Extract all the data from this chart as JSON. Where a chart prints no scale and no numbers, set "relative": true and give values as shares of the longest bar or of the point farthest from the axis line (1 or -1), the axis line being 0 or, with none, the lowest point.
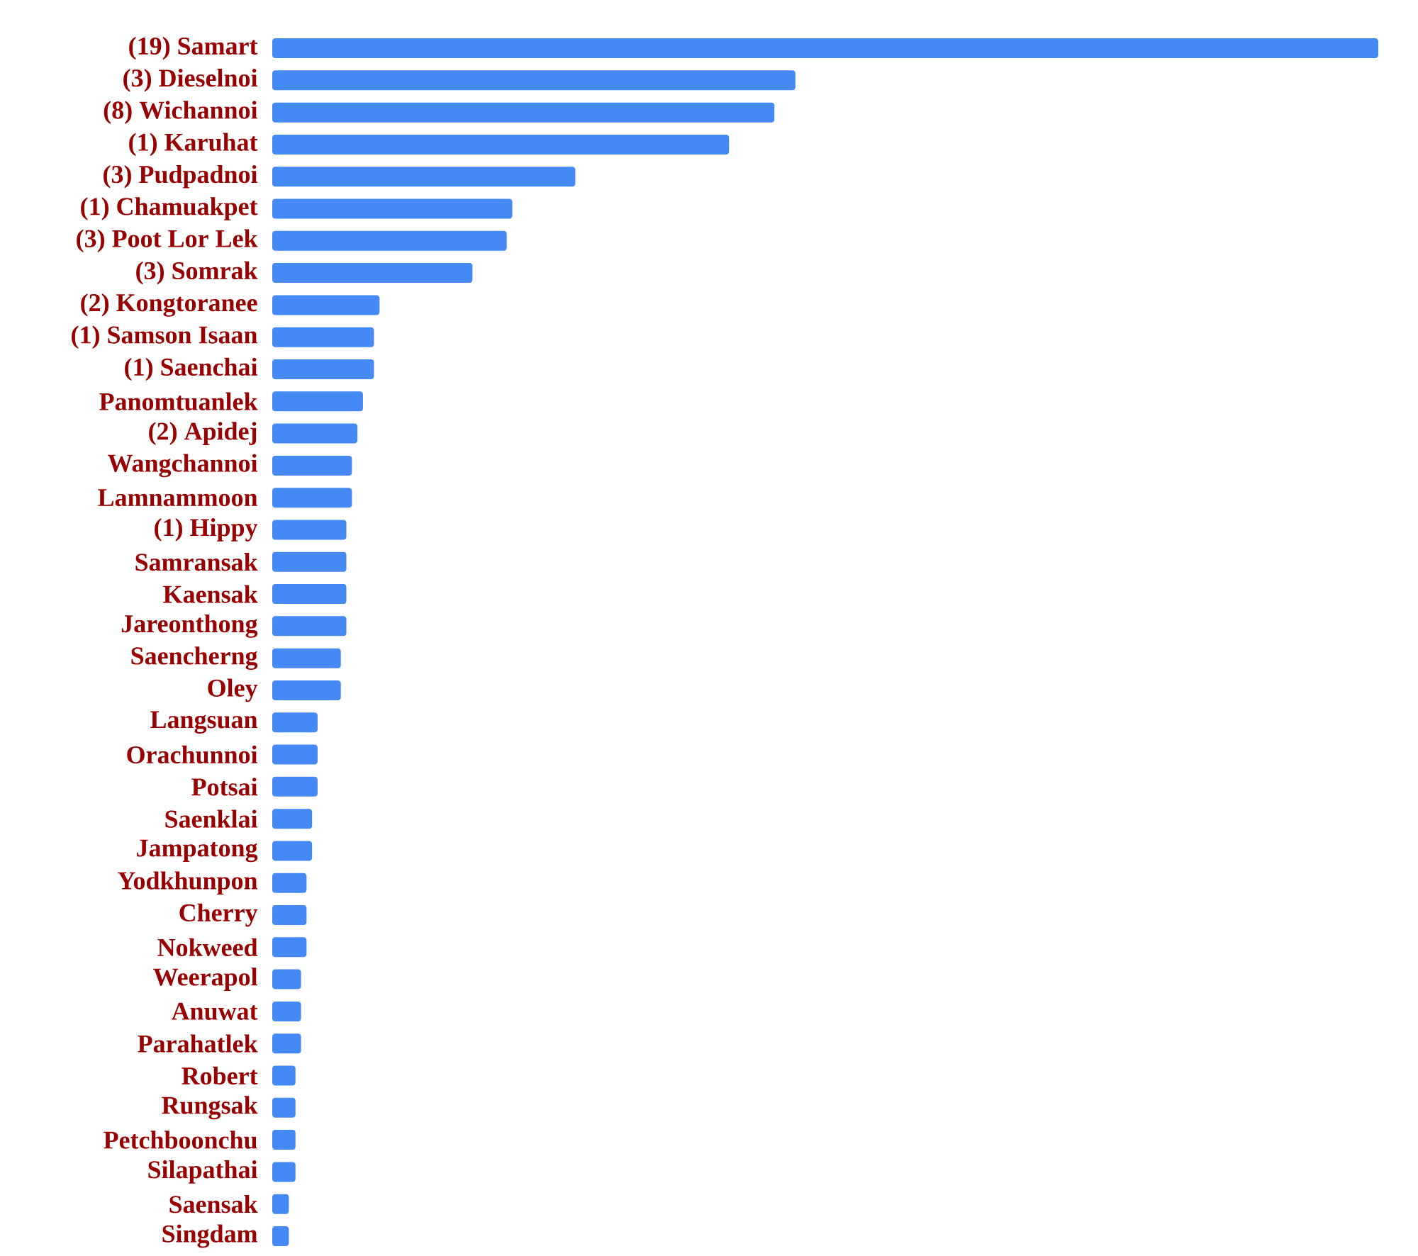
{
  "chart_data": {
    "type": "bar",
    "orientation": "horizontal",
    "relative": true,
    "color": "#4589f5",
    "categories": [
      "(19) Samart",
      "(3) Dieselnoi",
      "(8) Wichannoi",
      "(1) Karuhat",
      "(3) Pudpadnoi",
      "(1) Chamuakpet",
      "(3) Poot Lor Lek",
      "(3) Somrak",
      "(2) Kongtoranee",
      "(1) Samson Isaan",
      "(1) Saenchai",
      "Panomtuanlek",
      "(2) Apidej",
      "Wangchannoi",
      "Lamnammoon",
      "(1) Hippy",
      "Samransak",
      "Kaensak",
      "Jareonthong",
      "Saencherng",
      "Oley",
      "Langsuan",
      "Orachunnoi",
      "Potsai",
      "Saenklai",
      "Jampatong",
      "Yodkhunpon",
      "Cherry",
      "Nokweed",
      "Weerapol",
      "Anuwat",
      "Parahatlek",
      "Robert",
      "Rungsak",
      "Petchboonchu",
      "Silapathai",
      "Saensak",
      "Singdam"
    ],
    "values": [
      1,
      0.473,
      0.454,
      0.413,
      0.274,
      0.217,
      0.212,
      0.181,
      0.097,
      0.092,
      0.092,
      0.082,
      0.077,
      0.072,
      0.072,
      0.067,
      0.067,
      0.067,
      0.067,
      0.062,
      0.062,
      0.041,
      0.041,
      0.041,
      0.036,
      0.036,
      0.031,
      0.031,
      0.031,
      0.026,
      0.026,
      0.026,
      0.021,
      0.021,
      0.021,
      0.021,
      0.015,
      0.015
    ]
  }
}
